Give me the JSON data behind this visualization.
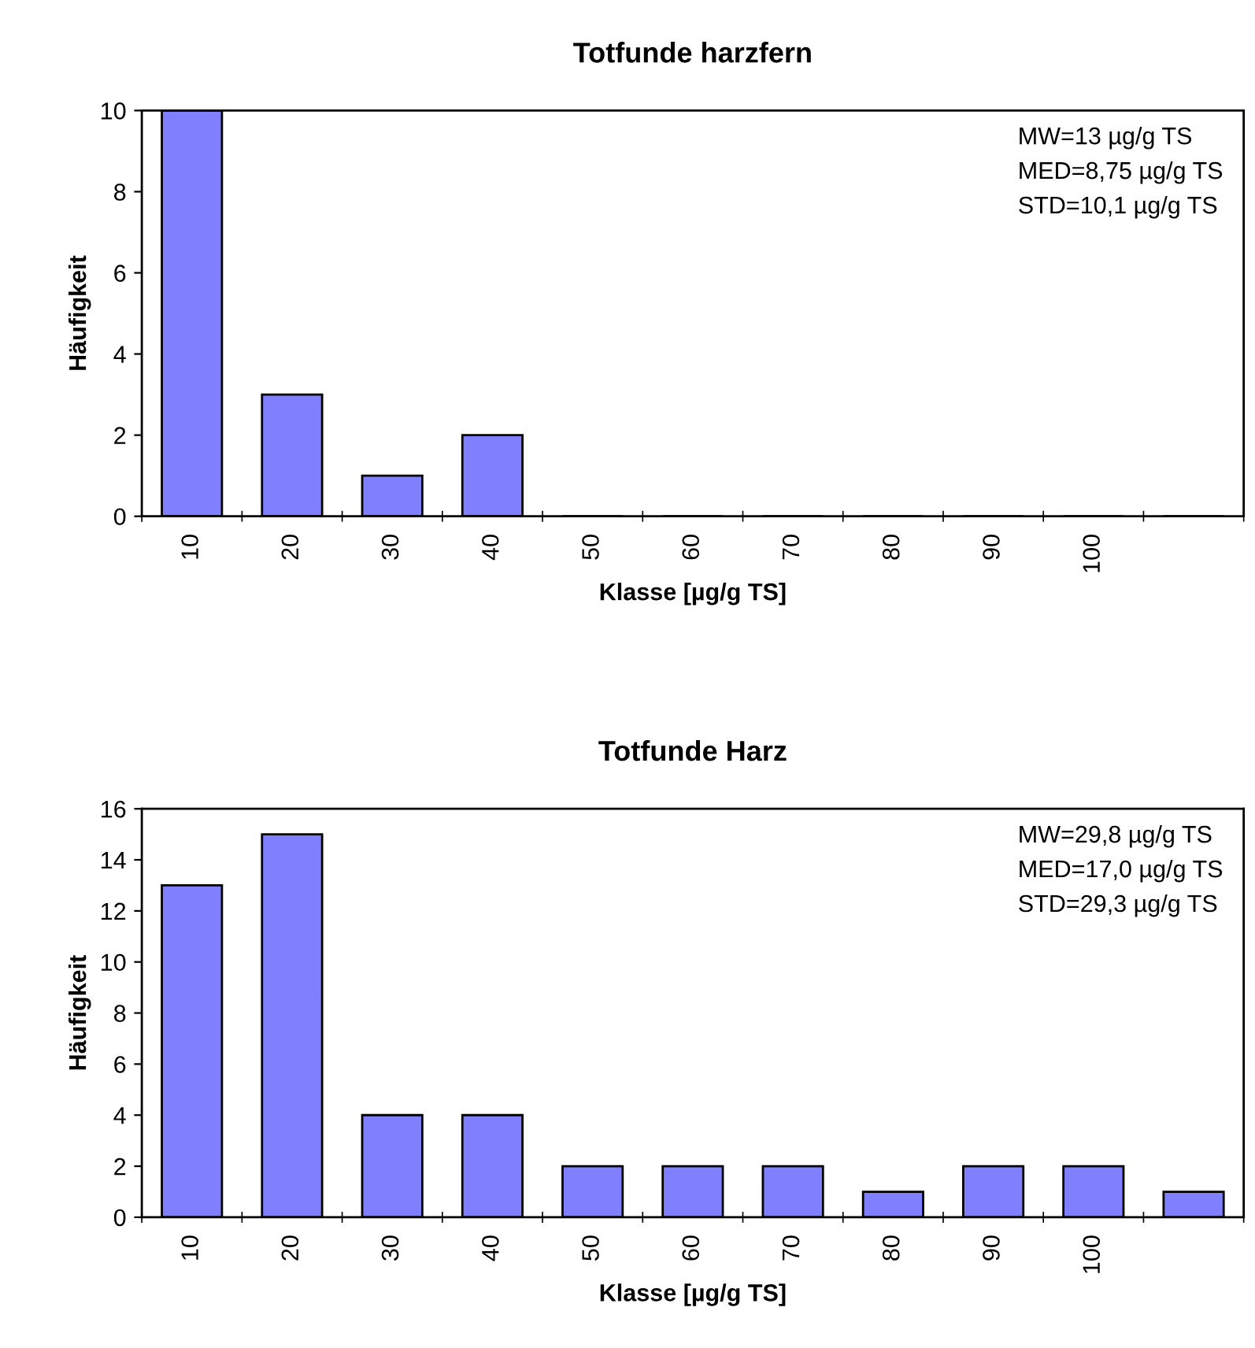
{
  "chart_data": [
    {
      "type": "bar",
      "title": "Totfunde harzfern",
      "xlabel": "Klasse [µg/g TS]",
      "ylabel": "Häufigkeit",
      "categories": [
        "10",
        "20",
        "30",
        "40",
        "50",
        "60",
        "70",
        "80",
        "90",
        "100",
        null
      ],
      "values": [
        10,
        3,
        1,
        2,
        0,
        0,
        0,
        0,
        0,
        0,
        0
      ],
      "color": "#8080ff",
      "ylim": [
        0,
        10
      ],
      "yticks": [
        0,
        2,
        4,
        6,
        8,
        10
      ],
      "grid": false,
      "legend": false,
      "annotations": [
        "MW=13 µg/g TS",
        "MED=8,75 µg/g TS",
        "STD=10,1 µg/g TS"
      ]
    },
    {
      "type": "bar",
      "title": "Totfunde Harz",
      "xlabel": "Klasse [µg/g TS]",
      "ylabel": "Häufigkeit",
      "categories": [
        "10",
        "20",
        "30",
        "40",
        "50",
        "60",
        "70",
        "80",
        "90",
        "100",
        null
      ],
      "values": [
        13,
        15,
        4,
        4,
        2,
        2,
        2,
        1,
        2,
        2,
        1
      ],
      "color": "#8080ff",
      "ylim": [
        0,
        16
      ],
      "yticks": [
        0,
        2,
        4,
        6,
        8,
        10,
        12,
        14,
        16
      ],
      "grid": false,
      "legend": false,
      "annotations": [
        "MW=29,8 µg/g TS",
        "MED=17,0 µg/g TS",
        "STD=29,3 µg/g TS"
      ]
    }
  ]
}
